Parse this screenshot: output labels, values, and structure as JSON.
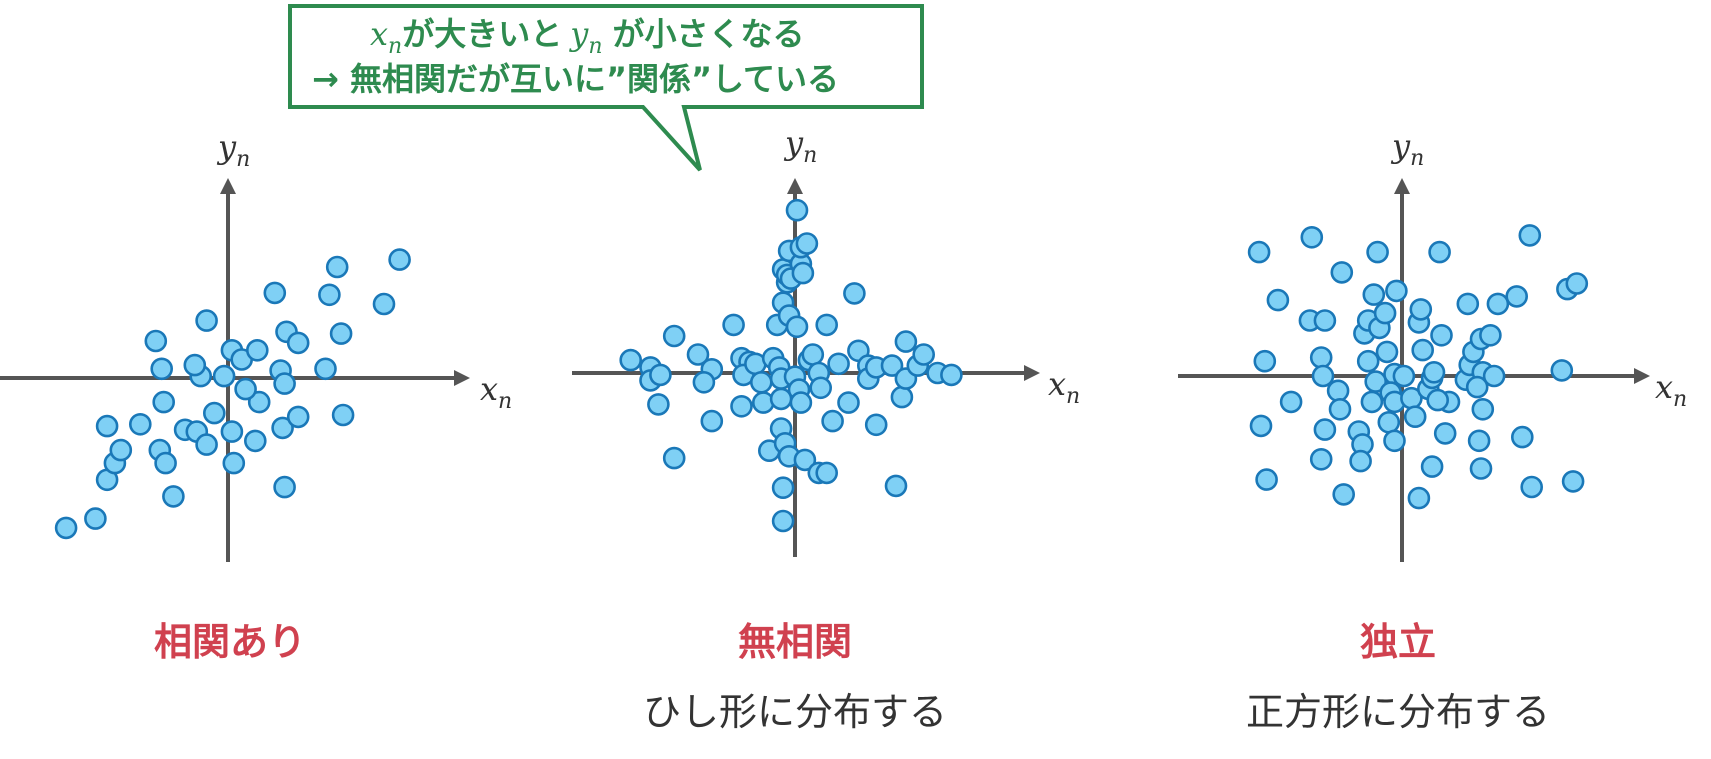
{
  "callout": {
    "line1": {
      "x_var": "x",
      "x_sub": "n",
      "mid": "が大きいと",
      "y_var": "y",
      "y_sub": "n",
      "end": "が小さくなる"
    },
    "line2": "→ 無相関だが互いに”関係”している",
    "border_color": "#2e8b4f"
  },
  "axis_labels": {
    "x_var": "x",
    "y_var": "y",
    "sub": "n"
  },
  "colors": {
    "axis": "#555555",
    "dot_fill": "#7fd0f5",
    "dot_stroke": "#1a78b8",
    "title": "#d0414f"
  },
  "panels": [
    {
      "id": "correlated",
      "title": "相関あり",
      "subtitle": "",
      "chart_data": {
        "type": "scatter",
        "xlim": [
          -12,
          12
        ],
        "ylim": [
          -10,
          10
        ],
        "points": [
          [
            -8.3,
            -8.1
          ],
          [
            -6.8,
            -7.6
          ],
          [
            -6.2,
            -5.5
          ],
          [
            -5.8,
            -4.6
          ],
          [
            -5.5,
            -3.9
          ],
          [
            -6.2,
            -2.6
          ],
          [
            -4.5,
            -2.5
          ],
          [
            -3.5,
            -3.9
          ],
          [
            -3.2,
            -4.6
          ],
          [
            -2.8,
            -6.4
          ],
          [
            -3.3,
            -1.3
          ],
          [
            -2.2,
            -2.8
          ],
          [
            -1.6,
            -2.9
          ],
          [
            -1.1,
            -3.6
          ],
          [
            -0.7,
            -1.9
          ],
          [
            0.2,
            -2.9
          ],
          [
            0.3,
            -4.6
          ],
          [
            1.4,
            -3.4
          ],
          [
            1.6,
            -1.3
          ],
          [
            0.9,
            -0.6
          ],
          [
            -0.2,
            0.1
          ],
          [
            -1.4,
            0.1
          ],
          [
            -1.7,
            0.7
          ],
          [
            -3.4,
            0.5
          ],
          [
            -3.7,
            2.0
          ],
          [
            -1.1,
            3.1
          ],
          [
            0.2,
            1.5
          ],
          [
            0.7,
            1.0
          ],
          [
            1.5,
            1.5
          ],
          [
            2.7,
            0.4
          ],
          [
            2.9,
            -0.3
          ],
          [
            2.8,
            -2.7
          ],
          [
            3.6,
            -2.1
          ],
          [
            2.9,
            -5.9
          ],
          [
            3.0,
            2.5
          ],
          [
            3.6,
            1.9
          ],
          [
            2.4,
            4.6
          ],
          [
            5.0,
            0.5
          ],
          [
            5.8,
            2.4
          ],
          [
            5.2,
            4.5
          ],
          [
            5.6,
            6.0
          ],
          [
            8.0,
            4.0
          ],
          [
            8.8,
            6.4
          ],
          [
            5.9,
            -2.0
          ]
        ]
      }
    },
    {
      "id": "uncorrelated",
      "title": "無相関",
      "subtitle": "ひし形に分布する",
      "chart_data": {
        "type": "scatter",
        "xlim": [
          -12,
          12
        ],
        "ylim": [
          -10,
          10
        ],
        "points": [
          [
            -8.3,
            0.7
          ],
          [
            -7.3,
            0.3
          ],
          [
            -7.3,
            -0.4
          ],
          [
            -6.8,
            -0.1
          ],
          [
            -6.1,
            2.0
          ],
          [
            -6.9,
            -1.7
          ],
          [
            -6.1,
            -4.6
          ],
          [
            -4.9,
            1.0
          ],
          [
            -4.2,
            0.2
          ],
          [
            -4.6,
            -0.5
          ],
          [
            -4.2,
            -2.6
          ],
          [
            -3.1,
            2.6
          ],
          [
            -2.7,
            0.8
          ],
          [
            -2.3,
            0.6
          ],
          [
            -2.6,
            -0.1
          ],
          [
            -2.0,
            0.5
          ],
          [
            -1.7,
            -0.5
          ],
          [
            -2.7,
            -1.8
          ],
          [
            -1.6,
            -1.6
          ],
          [
            -1.3,
            -4.2
          ],
          [
            -1.1,
            0.8
          ],
          [
            -0.8,
            0.3
          ],
          [
            -0.7,
            -0.3
          ],
          [
            -0.9,
            2.6
          ],
          [
            -0.6,
            3.8
          ],
          [
            -0.3,
            3.1
          ],
          [
            -0.4,
            4.9
          ],
          [
            -0.6,
            5.6
          ],
          [
            -0.4,
            5.3
          ],
          [
            -0.2,
            5.1
          ],
          [
            -0.3,
            6.6
          ],
          [
            0.3,
            5.9
          ],
          [
            0.4,
            5.4
          ],
          [
            0.3,
            6.8
          ],
          [
            0.1,
            2.5
          ],
          [
            0.1,
            8.8
          ],
          [
            0.6,
            7.0
          ],
          [
            -0.7,
            -1.4
          ],
          [
            -0.7,
            -3.0
          ],
          [
            -0.5,
            -3.8
          ],
          [
            -0.3,
            -4.5
          ],
          [
            -0.6,
            -6.2
          ],
          [
            -0.6,
            -8.0
          ],
          [
            0.0,
            -0.2
          ],
          [
            0.2,
            -0.9
          ],
          [
            0.3,
            -1.6
          ],
          [
            0.5,
            -4.7
          ],
          [
            1.2,
            -5.4
          ],
          [
            1.6,
            -5.4
          ],
          [
            0.7,
            0.7
          ],
          [
            0.9,
            1.0
          ],
          [
            1.2,
            0.0
          ],
          [
            1.3,
            -0.8
          ],
          [
            1.6,
            2.6
          ],
          [
            2.2,
            0.5
          ],
          [
            1.9,
            -2.6
          ],
          [
            2.7,
            -1.6
          ],
          [
            3.0,
            4.3
          ],
          [
            3.2,
            1.2
          ],
          [
            3.7,
            0.4
          ],
          [
            3.7,
            -0.3
          ],
          [
            4.1,
            0.3
          ],
          [
            4.1,
            -2.8
          ],
          [
            4.9,
            0.4
          ],
          [
            5.6,
            1.7
          ],
          [
            5.4,
            -1.3
          ],
          [
            5.6,
            -0.3
          ],
          [
            6.2,
            0.4
          ],
          [
            6.5,
            1.0
          ],
          [
            7.2,
            0.0
          ],
          [
            7.9,
            -0.1
          ],
          [
            5.1,
            -6.1
          ]
        ]
      }
    },
    {
      "id": "independent",
      "title": "独立",
      "subtitle": "正方形に分布する",
      "chart_data": {
        "type": "scatter",
        "xlim": [
          -12,
          12
        ],
        "ylim": [
          -10,
          10
        ],
        "points": [
          [
            -7.6,
            6.7
          ],
          [
            -6.6,
            4.1
          ],
          [
            -4.8,
            7.5
          ],
          [
            -7.3,
            0.8
          ],
          [
            -5.9,
            -1.4
          ],
          [
            -4.9,
            3.0
          ],
          [
            -4.1,
            3.0
          ],
          [
            -3.2,
            5.6
          ],
          [
            -4.3,
            1.0
          ],
          [
            -4.2,
            0.0
          ],
          [
            -3.4,
            -0.8
          ],
          [
            -3.3,
            -1.8
          ],
          [
            -4.1,
            -2.9
          ],
          [
            -4.3,
            -4.5
          ],
          [
            -7.5,
            -2.7
          ],
          [
            -7.2,
            -5.6
          ],
          [
            -3.1,
            -6.4
          ],
          [
            -2.3,
            -3.0
          ],
          [
            -2.1,
            -3.7
          ],
          [
            -1.6,
            -1.4
          ],
          [
            -2.2,
            -4.6
          ],
          [
            -1.4,
            -0.3
          ],
          [
            -1.8,
            0.8
          ],
          [
            -2.0,
            2.3
          ],
          [
            -1.8,
            3.0
          ],
          [
            -1.2,
            2.6
          ],
          [
            -1.5,
            4.4
          ],
          [
            -1.3,
            6.7
          ],
          [
            -0.9,
            3.4
          ],
          [
            -0.8,
            1.3
          ],
          [
            -0.4,
            0.1
          ],
          [
            -0.6,
            -0.9
          ],
          [
            -0.7,
            -2.5
          ],
          [
            -0.4,
            -1.4
          ],
          [
            -0.4,
            -3.5
          ],
          [
            -0.3,
            4.6
          ],
          [
            0.1,
            0.0
          ],
          [
            0.5,
            -1.2
          ],
          [
            0.7,
            -2.2
          ],
          [
            0.9,
            2.9
          ],
          [
            1.0,
            3.6
          ],
          [
            1.1,
            1.4
          ],
          [
            1.4,
            -0.7
          ],
          [
            1.6,
            -0.1
          ],
          [
            1.7,
            0.2
          ],
          [
            2.1,
            2.2
          ],
          [
            2.5,
            -1.4
          ],
          [
            2.3,
            -3.1
          ],
          [
            1.6,
            -4.9
          ],
          [
            2.0,
            6.7
          ],
          [
            0.9,
            -6.6
          ],
          [
            3.4,
            -0.2
          ],
          [
            3.6,
            0.6
          ],
          [
            3.8,
            1.3
          ],
          [
            4.2,
            2.0
          ],
          [
            4.3,
            0.2
          ],
          [
            4.0,
            -0.6
          ],
          [
            4.3,
            -1.8
          ],
          [
            4.1,
            -3.5
          ],
          [
            4.2,
            -5.0
          ],
          [
            3.5,
            3.9
          ],
          [
            4.7,
            2.2
          ],
          [
            4.9,
            0.0
          ],
          [
            5.1,
            3.9
          ],
          [
            6.1,
            4.3
          ],
          [
            6.8,
            7.6
          ],
          [
            6.4,
            -3.3
          ],
          [
            6.9,
            -6.0
          ],
          [
            8.8,
            4.7
          ],
          [
            8.5,
            0.3
          ],
          [
            9.3,
            5.0
          ],
          [
            9.1,
            -5.7
          ],
          [
            1.9,
            -1.3
          ]
        ]
      }
    }
  ]
}
